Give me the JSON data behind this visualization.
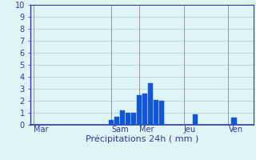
{
  "title": "",
  "xlabel": "Précipitations 24h ( mm )",
  "ylabel": "",
  "background_color": "#dff5f5",
  "bar_color": "#1155dd",
  "bar_color_edge": "#1155dd",
  "ylim": [
    0,
    10
  ],
  "num_bars": 40,
  "day_labels": [
    "Mar",
    "Sam",
    "Mer",
    "Jeu",
    "Ven"
  ],
  "day_tick_positions": [
    0.5,
    14.5,
    19.5,
    27.5,
    35.5
  ],
  "day_vline_positions": [
    0.5,
    14.5,
    19.5,
    27.5,
    35.5
  ],
  "bar_values": [
    0,
    0,
    0,
    0,
    0,
    0,
    0,
    0,
    0,
    0,
    0,
    0,
    0,
    0,
    0.4,
    0.7,
    1.2,
    1.0,
    1.0,
    2.5,
    2.6,
    3.5,
    2.1,
    2.0,
    0,
    0,
    0,
    0,
    0,
    0.9,
    0,
    0,
    0,
    0,
    0,
    0,
    0.6,
    0,
    0,
    0
  ],
  "yticks": [
    0,
    1,
    2,
    3,
    4,
    5,
    6,
    7,
    8,
    9,
    10
  ],
  "grid_color": "#aacfcf",
  "vline_color": "#888888",
  "axis_color": "#3333aa",
  "tick_color": "#3333aa",
  "label_color": "#3333aa",
  "xlabel_fontsize": 8,
  "tick_fontsize": 7
}
